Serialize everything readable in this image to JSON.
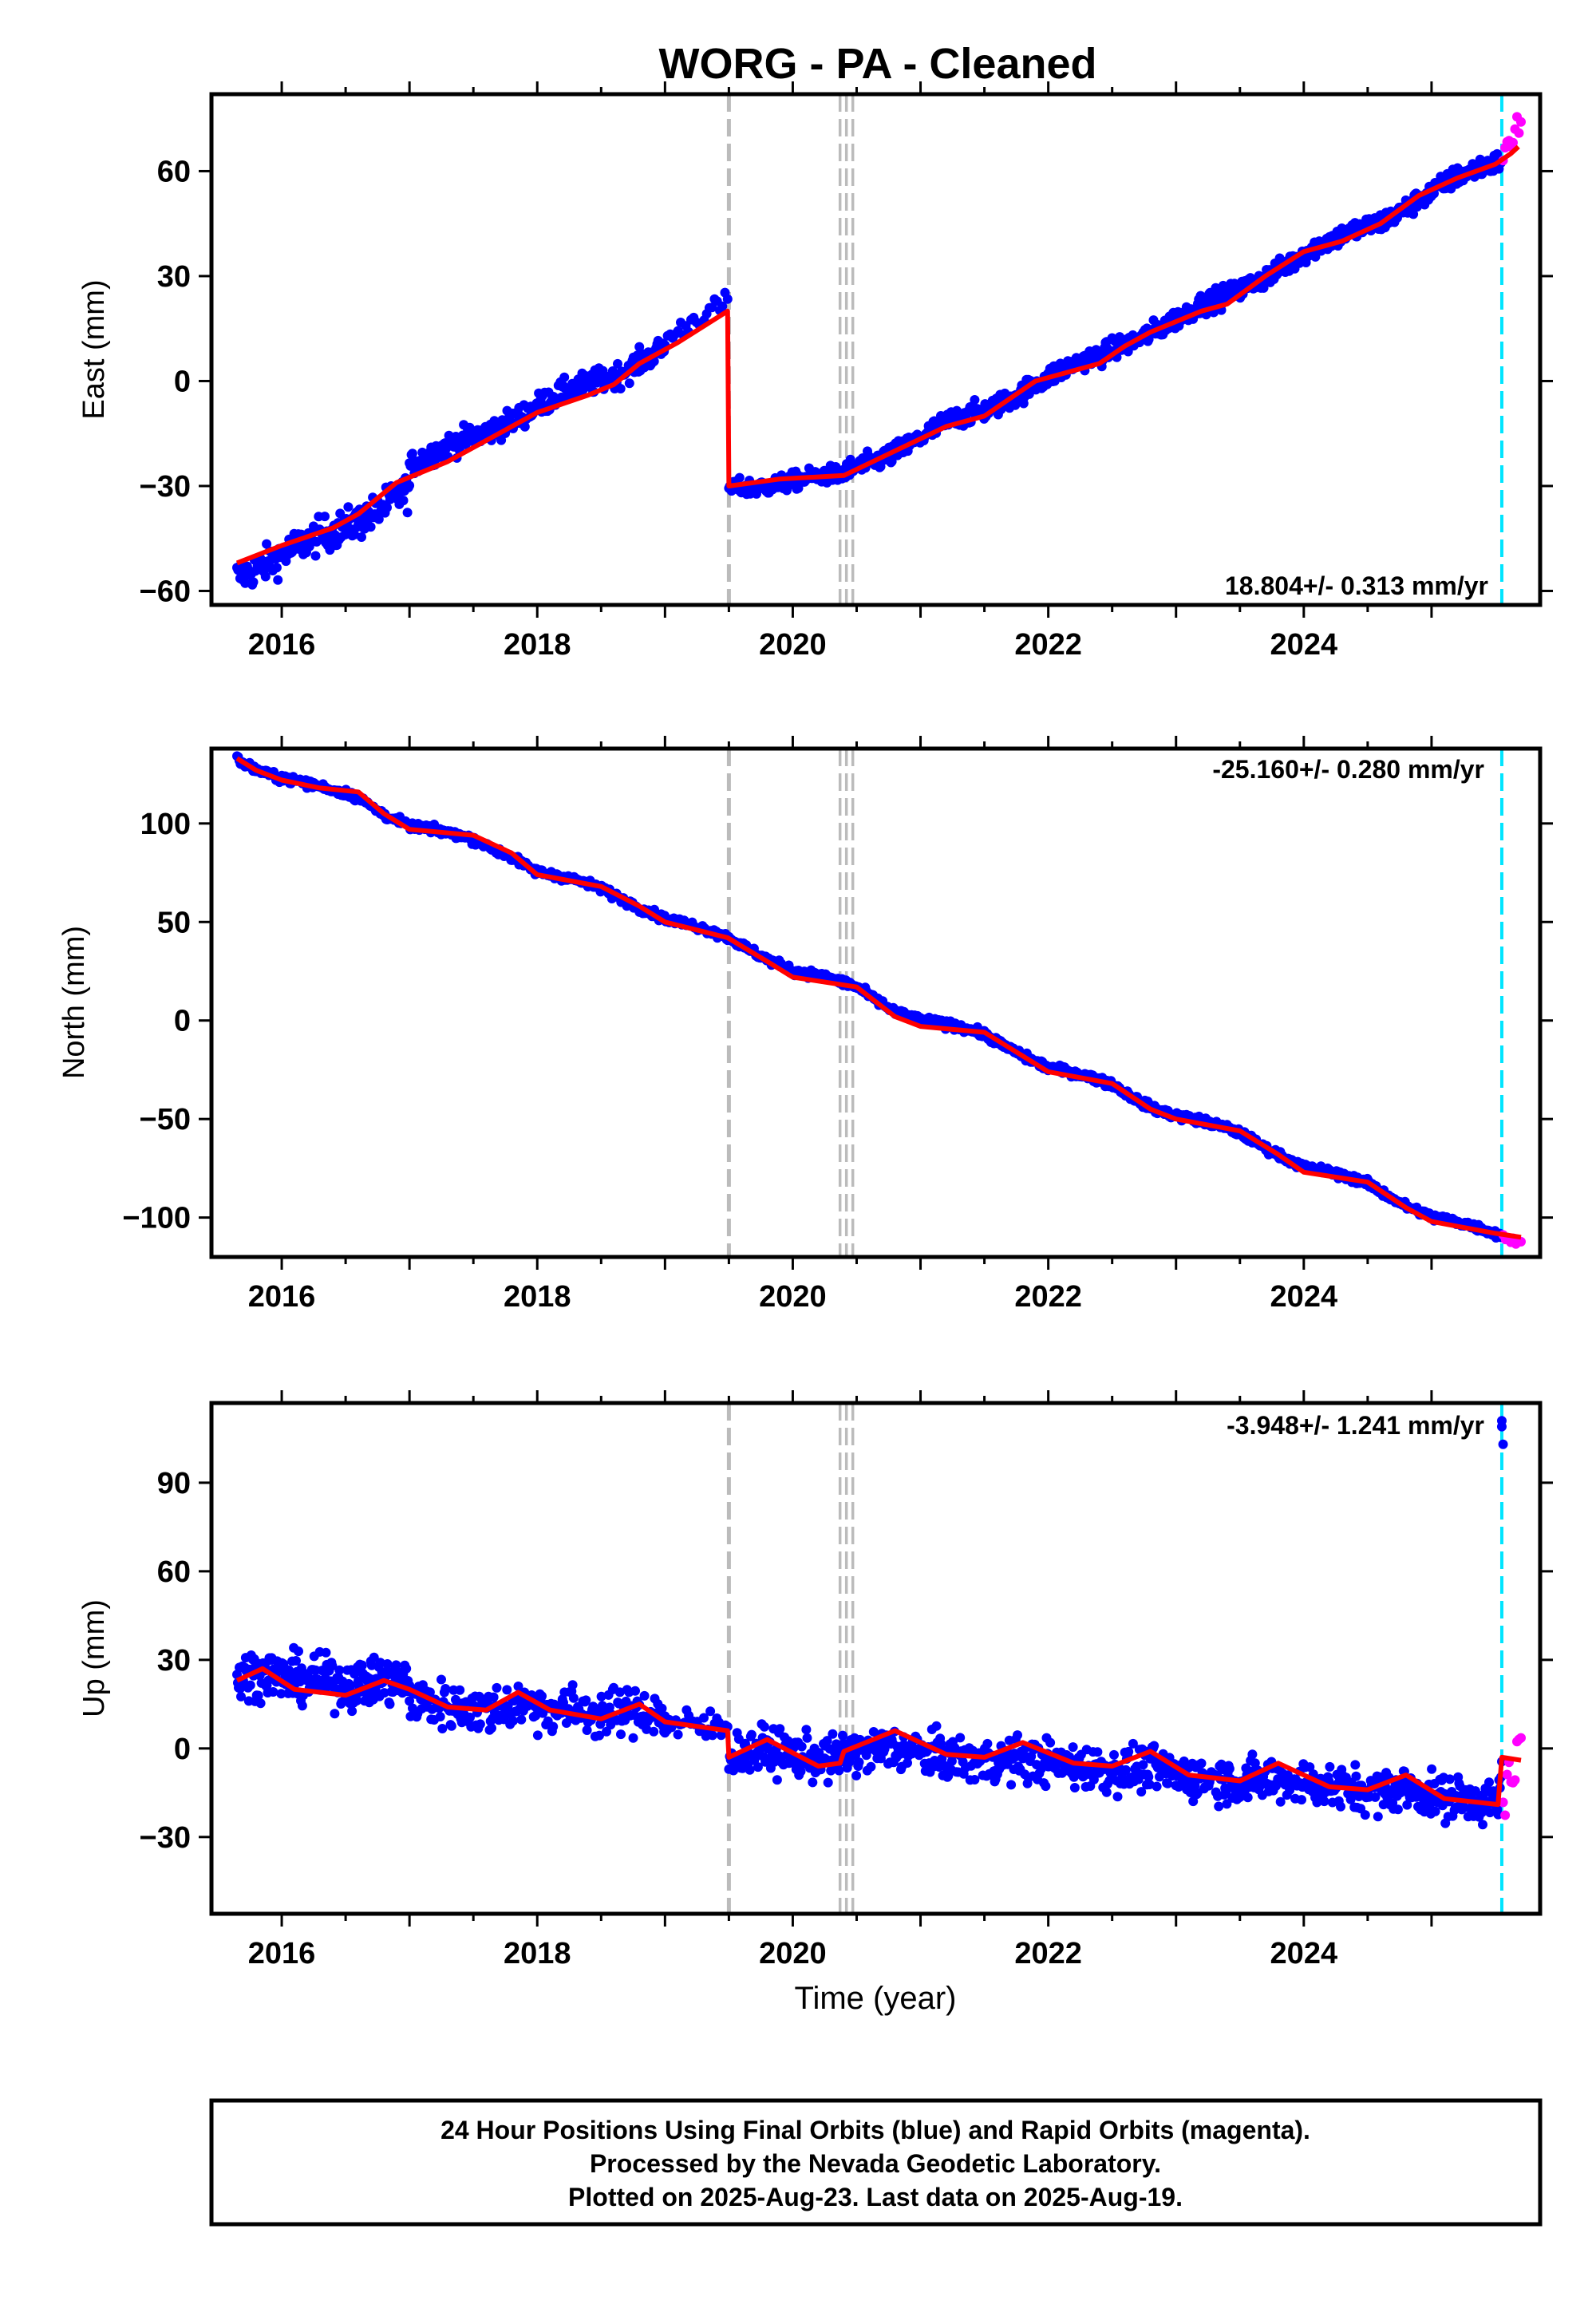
{
  "figure": {
    "title": "WORG  - PA - Cleaned",
    "xlabel": "Time (year)",
    "footer": [
      "24 Hour Positions Using Final Orbits (blue) and Rapid Orbits (magenta).",
      "Processed by the Nevada Geodetic Laboratory.",
      "Plotted on 2025-Aug-23. Last data on 2025-Aug-19."
    ],
    "colors": {
      "final_orbits": "#0000ff",
      "rapid_orbits": "#ff00ff",
      "model_fit": "#ff0000",
      "equipment_change": "#bbbbbb",
      "last_data_marker": "#00e5ff"
    }
  },
  "chart_data": [
    {
      "type": "scatter",
      "ylabel": "East (mm)",
      "rate": "18.804+/- 0.313 mm/yr",
      "xlim": [
        2015.45,
        2025.85
      ],
      "ylim": [
        -64,
        82
      ],
      "xticks": [
        2016,
        2018,
        2020,
        2022,
        2024
      ],
      "xtick_labels": [
        "2016",
        "2018",
        "2020",
        "2022",
        "2024"
      ],
      "yticks": [
        -60,
        -30,
        0,
        30,
        60
      ],
      "ytick_labels": [
        "−60",
        "−30",
        "0",
        "30",
        "60"
      ],
      "grey_lines": [
        2019.5,
        2020.37,
        2020.42,
        2020.47
      ],
      "cyan_line": 2025.55,
      "fit": [
        [
          2015.65,
          -52
        ],
        [
          2016.0,
          -47
        ],
        [
          2016.4,
          -42
        ],
        [
          2016.6,
          -38
        ],
        [
          2016.9,
          -29
        ],
        [
          2017.3,
          -23
        ],
        [
          2017.6,
          -17
        ],
        [
          2018.0,
          -9
        ],
        [
          2018.4,
          -4
        ],
        [
          2018.6,
          -1
        ],
        [
          2018.8,
          5
        ],
        [
          2019.1,
          11
        ],
        [
          2019.49,
          20
        ],
        [
          2019.5,
          -30
        ],
        [
          2019.9,
          -28
        ],
        [
          2020.4,
          -27
        ],
        [
          2020.8,
          -20
        ],
        [
          2021.2,
          -13
        ],
        [
          2021.5,
          -10
        ],
        [
          2021.9,
          0
        ],
        [
          2022.4,
          5
        ],
        [
          2022.6,
          10
        ],
        [
          2022.8,
          14
        ],
        [
          2023.2,
          20
        ],
        [
          2023.4,
          22
        ],
        [
          2023.7,
          30
        ],
        [
          2024.0,
          37
        ],
        [
          2024.3,
          40
        ],
        [
          2024.6,
          45
        ],
        [
          2024.9,
          53
        ],
        [
          2025.2,
          58
        ],
        [
          2025.5,
          62
        ],
        [
          2025.62,
          65
        ],
        [
          2025.68,
          67
        ]
      ],
      "points_blue": {
        "segments": [
          {
            "x0": 2015.65,
            "x1": 2017.0,
            "y0": -59,
            "y1": -35,
            "s": 5,
            "n": 170
          },
          {
            "x0": 2017.0,
            "x1": 2019.0,
            "y0": -20,
            "y1": 11,
            "s": 3.5,
            "n": 260
          },
          {
            "x0": 2019.0,
            "x1": 2019.49,
            "y0": 15,
            "y1": 25,
            "s": 3,
            "n": 25
          },
          {
            "x0": 2019.5,
            "x1": 2020.4,
            "y0": -31,
            "y1": -28,
            "s": 2.5,
            "n": 130
          },
          {
            "x0": 2020.4,
            "x1": 2025.55,
            "y0": -26,
            "y1": 63,
            "s": 3,
            "n": 700
          }
        ],
        "amplitude": 3.2
      },
      "points_magenta": {
        "x0": 2025.56,
        "x1": 2025.7,
        "y0": 64,
        "y1": 75,
        "n": 10,
        "spread": 6
      }
    },
    {
      "type": "scatter",
      "ylabel": "North (mm)",
      "rate": "-25.160+/- 0.280 mm/yr",
      "xlim": [
        2015.45,
        2025.85
      ],
      "ylim": [
        -120,
        138
      ],
      "xticks": [
        2016,
        2018,
        2020,
        2022,
        2024
      ],
      "xtick_labels": [
        "2016",
        "2018",
        "2020",
        "2022",
        "2024"
      ],
      "yticks": [
        -100,
        -50,
        0,
        50,
        100
      ],
      "ytick_labels": [
        "−100",
        "−50",
        "0",
        "50",
        "100"
      ],
      "grey_lines": [
        2019.5,
        2020.37,
        2020.42,
        2020.47
      ],
      "cyan_line": 2025.55,
      "fit": [
        [
          2015.65,
          133
        ],
        [
          2015.8,
          127
        ],
        [
          2016.0,
          122
        ],
        [
          2016.3,
          118
        ],
        [
          2016.6,
          116
        ],
        [
          2016.8,
          105
        ],
        [
          2017.0,
          97
        ],
        [
          2017.5,
          94
        ],
        [
          2017.8,
          85
        ],
        [
          2018.0,
          74
        ],
        [
          2018.5,
          68
        ],
        [
          2018.8,
          58
        ],
        [
          2019.0,
          50
        ],
        [
          2019.49,
          42
        ],
        [
          2019.8,
          30
        ],
        [
          2020.0,
          22
        ],
        [
          2020.5,
          17
        ],
        [
          2020.8,
          2
        ],
        [
          2021.0,
          -3
        ],
        [
          2021.5,
          -6
        ],
        [
          2021.8,
          -18
        ],
        [
          2022.0,
          -26
        ],
        [
          2022.5,
          -32
        ],
        [
          2022.8,
          -45
        ],
        [
          2023.0,
          -50
        ],
        [
          2023.5,
          -56
        ],
        [
          2023.8,
          -68
        ],
        [
          2024.0,
          -77
        ],
        [
          2024.5,
          -82
        ],
        [
          2024.8,
          -95
        ],
        [
          2025.0,
          -102
        ],
        [
          2025.5,
          -108
        ],
        [
          2025.7,
          -110
        ]
      ],
      "points_blue": {
        "segments": [
          {
            "x0": 2015.65,
            "x1": 2019.5,
            "y0": 133,
            "y1": 42,
            "s": 2,
            "n": 430
          },
          {
            "x0": 2019.5,
            "x1": 2025.55,
            "y0": 42,
            "y1": -110,
            "s": 2,
            "n": 800
          }
        ],
        "amplitude": 3
      },
      "points_magenta": {
        "x0": 2025.56,
        "x1": 2025.7,
        "y0": -110,
        "y1": -113,
        "n": 8,
        "spread": 3
      }
    },
    {
      "type": "scatter",
      "ylabel": "Up (mm)",
      "rate": "-3.948+/- 1.241 mm/yr",
      "xlim": [
        2015.45,
        2025.85
      ],
      "ylim": [
        -56,
        117
      ],
      "xticks": [
        2016,
        2018,
        2020,
        2022,
        2024
      ],
      "xtick_labels": [
        "2016",
        "2018",
        "2020",
        "2022",
        "2024"
      ],
      "yticks": [
        -30,
        0,
        30,
        60,
        90
      ],
      "ytick_labels": [
        "−30",
        "0",
        "30",
        "60",
        "90"
      ],
      "grey_lines": [
        2019.5,
        2020.37,
        2020.42,
        2020.47
      ],
      "cyan_line": 2025.55,
      "fit": [
        [
          2015.65,
          23
        ],
        [
          2015.85,
          27
        ],
        [
          2016.1,
          20
        ],
        [
          2016.5,
          18
        ],
        [
          2016.8,
          23
        ],
        [
          2017.0,
          20
        ],
        [
          2017.3,
          14
        ],
        [
          2017.6,
          13
        ],
        [
          2017.85,
          19
        ],
        [
          2018.1,
          13
        ],
        [
          2018.5,
          10
        ],
        [
          2018.8,
          15
        ],
        [
          2019.0,
          9
        ],
        [
          2019.49,
          6
        ],
        [
          2019.5,
          -3
        ],
        [
          2019.8,
          3
        ],
        [
          2020.2,
          -6
        ],
        [
          2020.37,
          -5
        ],
        [
          2020.4,
          -1
        ],
        [
          2020.8,
          6
        ],
        [
          2021.2,
          -2
        ],
        [
          2021.5,
          -3
        ],
        [
          2021.8,
          2
        ],
        [
          2022.2,
          -5
        ],
        [
          2022.5,
          -6
        ],
        [
          2022.8,
          -1
        ],
        [
          2023.1,
          -9
        ],
        [
          2023.5,
          -11
        ],
        [
          2023.8,
          -5
        ],
        [
          2024.2,
          -13
        ],
        [
          2024.5,
          -14
        ],
        [
          2024.8,
          -9
        ],
        [
          2025.1,
          -17
        ],
        [
          2025.52,
          -19
        ],
        [
          2025.55,
          -3
        ],
        [
          2025.7,
          -4
        ]
      ],
      "points_blue": {
        "segments": [
          {
            "x0": 2015.65,
            "x1": 2017.0,
            "y0": 27,
            "y1": 25,
            "s": 8,
            "n": 220
          },
          {
            "x0": 2017.0,
            "x1": 2019.0,
            "y0": 13,
            "y1": 13,
            "s": 8,
            "n": 250
          },
          {
            "x0": 2019.0,
            "x1": 2019.49,
            "y0": 5,
            "y1": 7,
            "s": 6,
            "n": 30
          },
          {
            "x0": 2019.5,
            "x1": 2025.55,
            "y0": -1,
            "y1": -19,
            "s": 7.5,
            "n": 850
          }
        ],
        "amplitude": 3
      },
      "points_magenta": {
        "x0": 2025.56,
        "x1": 2025.7,
        "y0": -20,
        "y1": 5,
        "n": 10,
        "spread": 15
      }
    }
  ]
}
